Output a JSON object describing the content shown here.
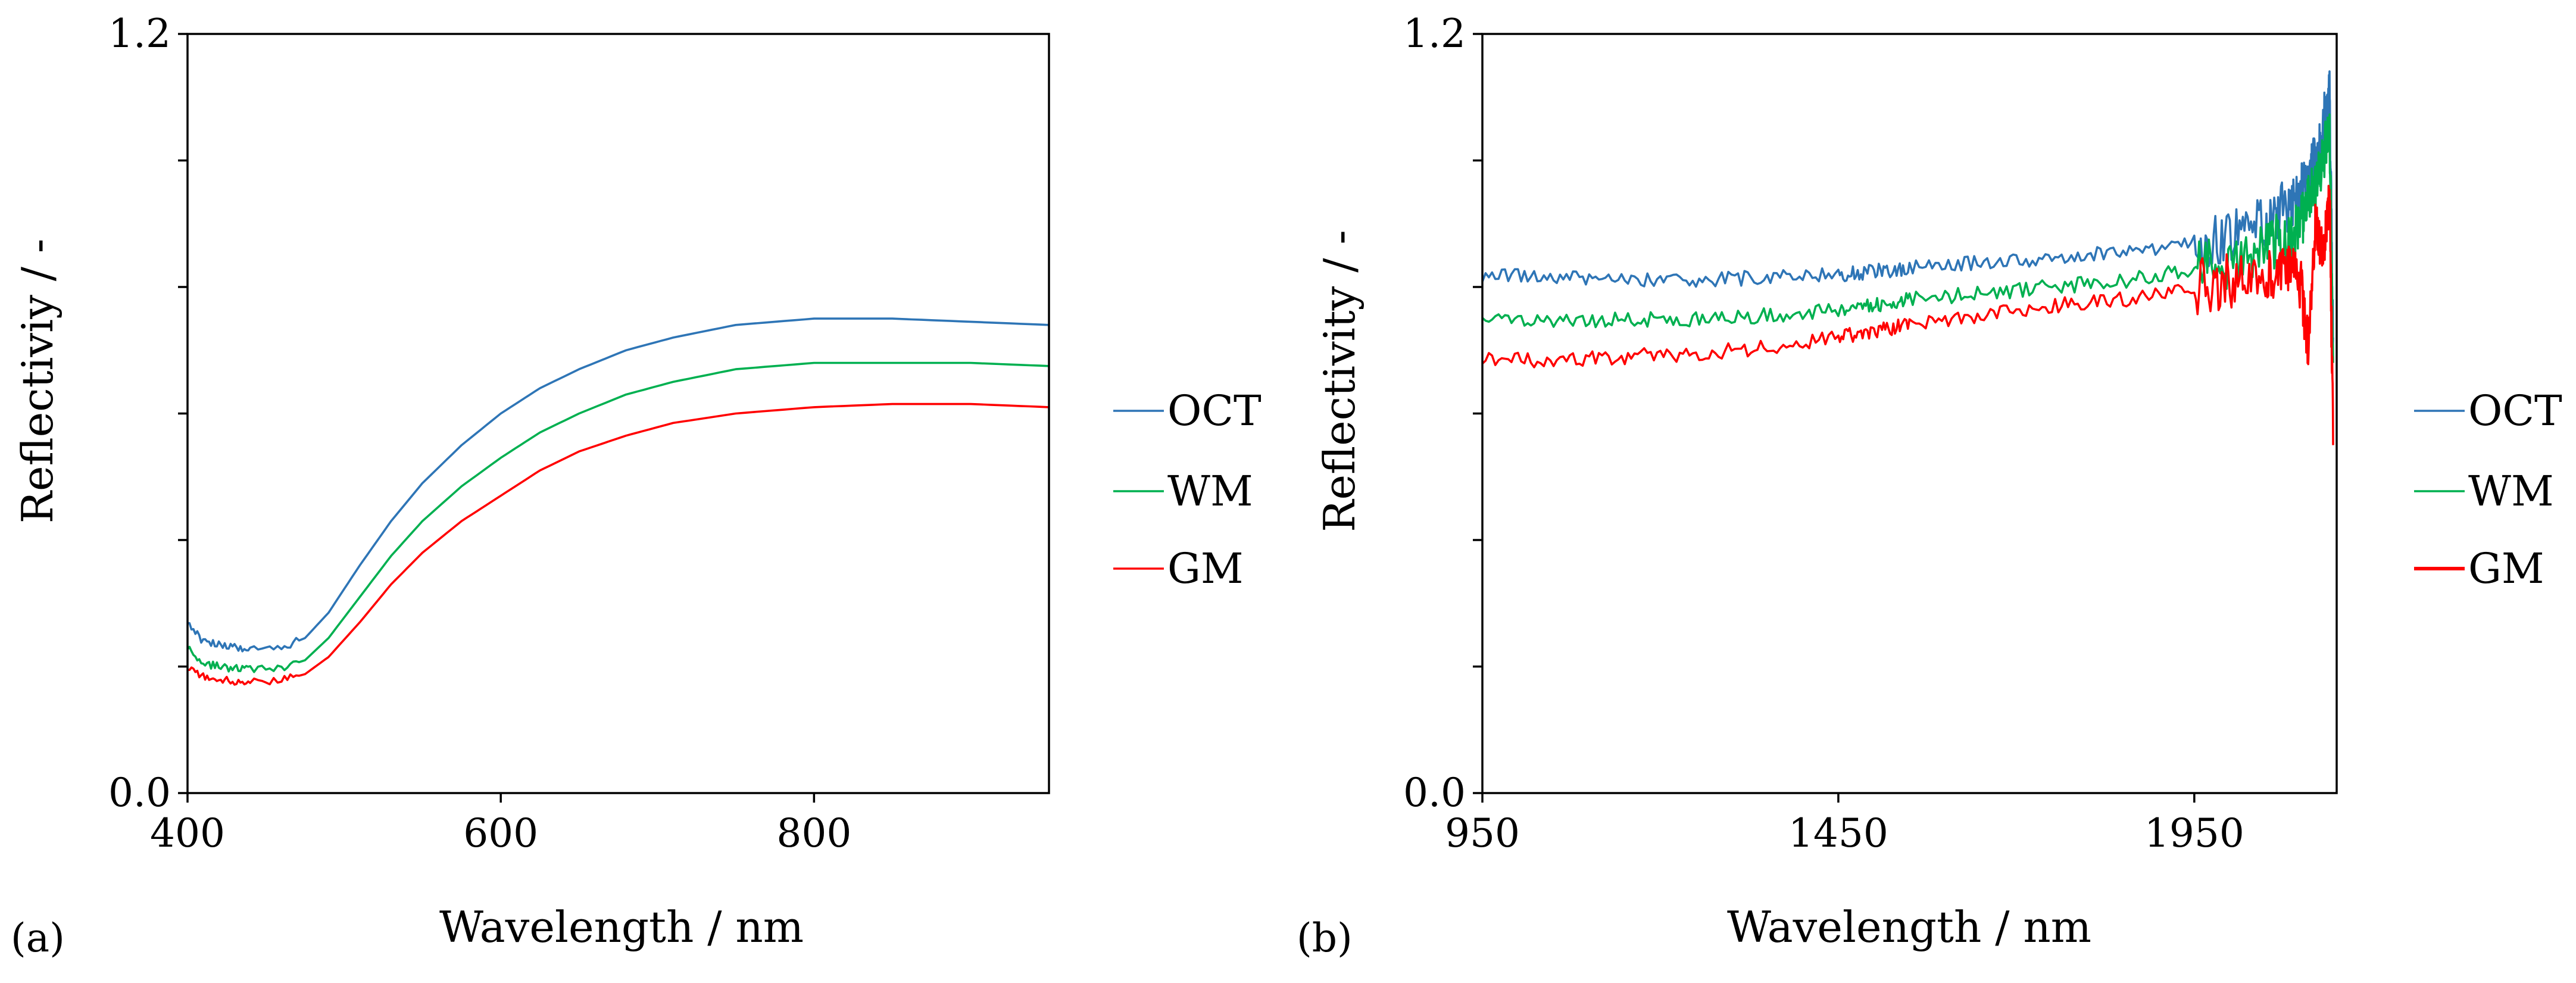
{
  "chart_data": [
    {
      "panel_label": "(a)",
      "type": "line",
      "xlabel": "Wavelength / nm",
      "ylabel": "Reflectiviy / -",
      "xlim": [
        400,
        950
      ],
      "ylim": [
        0.0,
        1.2
      ],
      "xtick_values": [
        400,
        600,
        800
      ],
      "xtick_labels": [
        "400",
        "600",
        "800"
      ],
      "ytick_values": [
        0.0,
        0.2,
        0.4,
        0.6,
        0.8,
        1.0,
        1.2
      ],
      "ytick_labels": [
        "0.0",
        "",
        "",
        "",
        "",
        "",
        "1.2"
      ],
      "legend": "right",
      "series": [
        {
          "name": "OCT",
          "color": "#2e75b6",
          "x": [
            400,
            410,
            420,
            430,
            440,
            460,
            475,
            490,
            510,
            530,
            550,
            575,
            600,
            625,
            650,
            680,
            710,
            750,
            800,
            850,
            900,
            950
          ],
          "y": [
            0.27,
            0.24,
            0.235,
            0.23,
            0.228,
            0.23,
            0.245,
            0.285,
            0.36,
            0.43,
            0.49,
            0.55,
            0.6,
            0.64,
            0.67,
            0.7,
            0.72,
            0.74,
            0.75,
            0.75,
            0.745,
            0.74
          ]
        },
        {
          "name": "WM",
          "color": "#00b050",
          "x": [
            400,
            410,
            420,
            430,
            440,
            460,
            475,
            490,
            510,
            530,
            550,
            575,
            600,
            625,
            650,
            680,
            710,
            750,
            800,
            850,
            900,
            950
          ],
          "y": [
            0.23,
            0.205,
            0.2,
            0.197,
            0.196,
            0.198,
            0.21,
            0.245,
            0.31,
            0.375,
            0.43,
            0.485,
            0.53,
            0.57,
            0.6,
            0.63,
            0.65,
            0.67,
            0.68,
            0.68,
            0.68,
            0.675
          ]
        },
        {
          "name": "GM",
          "color": "#ff0000",
          "x": [
            400,
            410,
            420,
            430,
            440,
            460,
            475,
            490,
            510,
            530,
            550,
            575,
            600,
            625,
            650,
            680,
            710,
            750,
            800,
            850,
            900,
            950
          ],
          "y": [
            0.2,
            0.185,
            0.18,
            0.177,
            0.176,
            0.178,
            0.188,
            0.215,
            0.27,
            0.33,
            0.38,
            0.43,
            0.47,
            0.51,
            0.54,
            0.565,
            0.585,
            0.6,
            0.61,
            0.615,
            0.615,
            0.61
          ]
        }
      ]
    },
    {
      "panel_label": "(b)",
      "type": "line",
      "xlabel": "Wavelength / nm",
      "ylabel": "Reflectivity / -",
      "xlim": [
        950,
        2150
      ],
      "ylim": [
        0.0,
        1.2
      ],
      "xtick_values": [
        950,
        1450,
        1950
      ],
      "xtick_labels": [
        "950",
        "1450",
        "1950"
      ],
      "ytick_values": [
        0.0,
        0.2,
        0.4,
        0.6,
        0.8,
        1.0,
        1.2
      ],
      "ytick_labels": [
        "0.0",
        "",
        "",
        "",
        "",
        "",
        "1.2"
      ],
      "legend": "right",
      "series": [
        {
          "name": "OCT",
          "color": "#2e75b6",
          "x": [
            950,
            1050,
            1150,
            1250,
            1350,
            1450,
            1500,
            1550,
            1650,
            1750,
            1850,
            1950,
            2000,
            2050,
            2080,
            2100,
            2110,
            2120,
            2130,
            2140,
            2145
          ],
          "y": [
            0.82,
            0.815,
            0.812,
            0.81,
            0.815,
            0.82,
            0.825,
            0.83,
            0.84,
            0.845,
            0.855,
            0.87,
            0.88,
            0.9,
            0.93,
            0.95,
            0.97,
            1.0,
            1.05,
            1.1,
            0.72
          ]
        },
        {
          "name": "WM",
          "color": "#00b050",
          "x": [
            950,
            1050,
            1150,
            1250,
            1350,
            1450,
            1500,
            1550,
            1650,
            1750,
            1850,
            1950,
            2000,
            2050,
            2080,
            2100,
            2110,
            2120,
            2130,
            2140,
            2145
          ],
          "y": [
            0.75,
            0.748,
            0.748,
            0.75,
            0.755,
            0.765,
            0.77,
            0.78,
            0.79,
            0.8,
            0.81,
            0.83,
            0.84,
            0.86,
            0.88,
            0.9,
            0.93,
            0.96,
            1.0,
            1.05,
            0.68
          ]
        },
        {
          "name": "GM",
          "color": "#ff0000",
          "x": [
            950,
            1050,
            1150,
            1250,
            1350,
            1450,
            1500,
            1550,
            1650,
            1750,
            1850,
            1950,
            2000,
            2050,
            2080,
            2100,
            2110,
            2120,
            2130,
            2140,
            2145
          ],
          "y": [
            0.685,
            0.685,
            0.69,
            0.695,
            0.705,
            0.72,
            0.73,
            0.74,
            0.755,
            0.77,
            0.78,
            0.8,
            0.81,
            0.82,
            0.83,
            0.8,
            0.7,
            0.9,
            0.85,
            0.95,
            0.55
          ]
        }
      ]
    }
  ]
}
